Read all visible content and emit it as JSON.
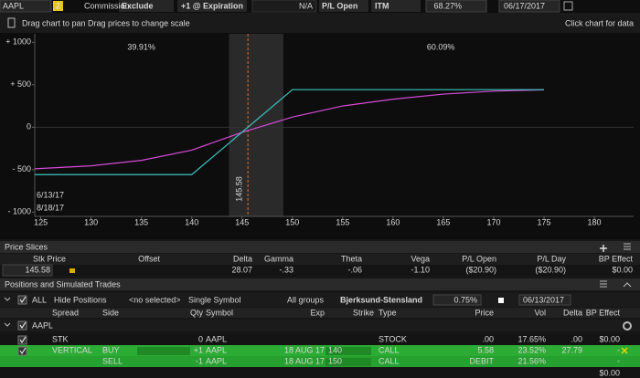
{
  "toolbar": {
    "symbol": "AAPL",
    "link_group": "2",
    "commission_label": "Commission:",
    "commission": "Exclude",
    "mode": "+1 @ Expiration",
    "disabled_field": "N/A",
    "pl_mode": "P/L Open",
    "itm": "ITM",
    "probability": "68.27%",
    "date": "06/17/2017"
  },
  "chart_hint": "Drag chart to pan Drag prices to change scale",
  "chart_hint_right": "Click chart for data",
  "risk_chart": {
    "type": "line",
    "xlim": [
      124.4,
      183.9
    ],
    "ylim": [
      -1050,
      1100
    ],
    "xticks": [
      125,
      130,
      135,
      140,
      145,
      150,
      155,
      160,
      165,
      170,
      175,
      180
    ],
    "yticks": [
      {
        "value": 1000,
        "label": "+ 1000"
      },
      {
        "value": 500,
        "label": "+ 500"
      },
      0,
      {
        "value": -500,
        "label": "- 500"
      },
      {
        "value": -1000,
        "label": "- 1000"
      }
    ],
    "probability_left": "39.91%",
    "probability_right": "60.09%",
    "price_marker": 145.58,
    "price_band": [
      143.7,
      149.1
    ],
    "series": [
      {
        "name": "6/13/17",
        "color": "#d64bd8",
        "x": [
          124.4,
          130,
          135,
          140,
          145,
          150,
          155,
          160,
          165,
          170,
          175
        ],
        "values": [
          -490,
          -455,
          -390,
          -270,
          -60,
          120,
          250,
          330,
          390,
          425,
          440
        ]
      },
      {
        "name": "8/18/17",
        "color": "#3cc4c0",
        "x": [
          124.4,
          140,
          150,
          175
        ],
        "values": [
          -558,
          -558,
          442,
          442
        ]
      }
    ]
  },
  "price_slices": {
    "title": "Price Slices",
    "columns": {
      "stk_price": "Stk Price",
      "offset": "Offset",
      "delta": "Delta",
      "gamma": "Gamma",
      "theta": "Theta",
      "vega": "Vega",
      "pl_open": "P/L Open",
      "pl_day": "P/L Day",
      "bp_effect": "BP Effect"
    },
    "row": {
      "stk_price": "145.58",
      "delta": "28.07",
      "gamma": "-.33",
      "theta": "-.06",
      "vega": "-1.10",
      "pl_open": "($20.90)",
      "pl_day": "($20.90)",
      "bp_effect": "$0.00"
    }
  },
  "positions": {
    "title": "Positions and Simulated Trades",
    "toolbar": {
      "all": "ALL",
      "hide": "Hide Positions",
      "selected": "<no selected>",
      "symbol_mode": "Single Symbol",
      "groups": "All groups",
      "model": "Bjerksund-Stensland",
      "rate": "0.75%",
      "date": "06/13/2017"
    },
    "columns": {
      "spread": "Spread",
      "side": "Side",
      "qty": "Qty",
      "symbol": "Symbol",
      "exp": "Exp",
      "strike": "Strike",
      "type": "Type",
      "price": "Price",
      "vol": "Vol",
      "delta": "Delta",
      "bp": "BP Effect"
    },
    "group": "AAPL",
    "rows": [
      {
        "spread": "STK",
        "qty": "0",
        "symbol": "AAPL",
        "type": "STOCK",
        "price": ".00",
        "vol": "17.65%",
        "delta": ".00",
        "bp": "$0.00"
      },
      {
        "spread": "VERTICAL",
        "side": "BUY",
        "qty": "+1",
        "symbol": "AAPL",
        "exp": "18 AUG 17",
        "strike": "140",
        "type": "CALL",
        "price": "5.58",
        "vol": "23.52%",
        "delta": "27.79",
        "bp": "-"
      },
      {
        "side": "SELL",
        "qty": "-1",
        "symbol": "AAPL",
        "exp": "18 AUG 17",
        "strike": "150",
        "type": "CALL",
        "price": "DEBIT",
        "vol": "21.56%",
        "bp": "-"
      }
    ],
    "total": "$0.00"
  }
}
